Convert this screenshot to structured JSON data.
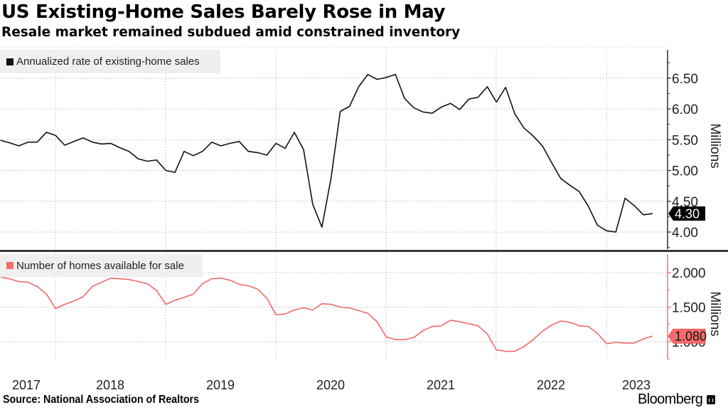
{
  "header": {
    "title": "US Existing-Home Sales Barely Rose in May",
    "subtitle": "Resale market remained subdued amid constrained inventory"
  },
  "footer": {
    "source": "Source:  National Association of Realtors",
    "brand": "Bloomberg"
  },
  "colors": {
    "sales_line": "#111111",
    "inventory_line": "#f06a6a",
    "inventory_tag": "#f96b6b",
    "legend_bg": "#efefef",
    "grid": "#cccccc",
    "separator": "#3a3a3a"
  },
  "chart_data": [
    {
      "type": "line",
      "title": "Annualized rate of existing-home sales",
      "legend": "top-left",
      "ylabel": "Millions",
      "ylim": [
        3.75,
        6.95
      ],
      "yticks": [
        "4.00",
        "4.50",
        "5.00",
        "5.50",
        "6.00",
        "6.50"
      ],
      "ytick_values": [
        4.0,
        4.5,
        5.0,
        5.5,
        6.0,
        6.5
      ],
      "last_value_label": "4.30",
      "x_start": "2017-06",
      "x_end": "2023-05",
      "frequency": "monthly",
      "grid": true,
      "series": [
        {
          "name": "Annualized rate of existing-home sales",
          "values": [
            5.49,
            5.45,
            5.4,
            5.46,
            5.46,
            5.62,
            5.57,
            5.41,
            5.47,
            5.53,
            5.46,
            5.43,
            5.44,
            5.37,
            5.31,
            5.19,
            5.15,
            5.17,
            5.0,
            4.97,
            5.31,
            5.24,
            5.31,
            5.46,
            5.4,
            5.44,
            5.47,
            5.31,
            5.29,
            5.25,
            5.44,
            5.36,
            5.62,
            5.34,
            4.45,
            4.08,
            4.88,
            5.96,
            6.04,
            6.36,
            6.56,
            6.48,
            6.51,
            6.56,
            6.17,
            6.02,
            5.95,
            5.93,
            6.03,
            6.09,
            5.99,
            6.16,
            6.19,
            6.36,
            6.11,
            6.35,
            5.92,
            5.69,
            5.56,
            5.4,
            5.13,
            4.87,
            4.76,
            4.66,
            4.42,
            4.11,
            4.02,
            4.0,
            4.55,
            4.43,
            4.28,
            4.3
          ]
        }
      ]
    },
    {
      "type": "line",
      "title": "Number of homes available for sale",
      "legend": "top-left",
      "ylabel": "Millions",
      "ylim": [
        0.75,
        2.2
      ],
      "yticks": [
        "1.000",
        "1.500",
        "2.000"
      ],
      "ytick_values": [
        1.0,
        1.5,
        2.0
      ],
      "last_value_label": "1.080",
      "x_start": "2017-06",
      "x_end": "2023-05",
      "frequency": "monthly",
      "grid": true,
      "xtick_labels": [
        "2017",
        "2018",
        "2019",
        "2020",
        "2021",
        "2022",
        "2023"
      ],
      "series": [
        {
          "name": "Number of homes available for sale",
          "values": [
            1.94,
            1.91,
            1.87,
            1.86,
            1.8,
            1.69,
            1.48,
            1.54,
            1.59,
            1.65,
            1.8,
            1.86,
            1.92,
            1.91,
            1.9,
            1.87,
            1.84,
            1.74,
            1.54,
            1.6,
            1.64,
            1.69,
            1.84,
            1.91,
            1.92,
            1.89,
            1.83,
            1.81,
            1.76,
            1.63,
            1.39,
            1.4,
            1.46,
            1.49,
            1.46,
            1.55,
            1.54,
            1.5,
            1.49,
            1.45,
            1.41,
            1.29,
            1.07,
            1.03,
            1.03,
            1.06,
            1.16,
            1.22,
            1.23,
            1.31,
            1.29,
            1.26,
            1.23,
            1.11,
            0.88,
            0.86,
            0.86,
            0.93,
            1.03,
            1.15,
            1.24,
            1.3,
            1.28,
            1.23,
            1.22,
            1.12,
            0.97,
            0.99,
            0.98,
            0.98,
            1.04,
            1.08
          ]
        }
      ]
    }
  ]
}
